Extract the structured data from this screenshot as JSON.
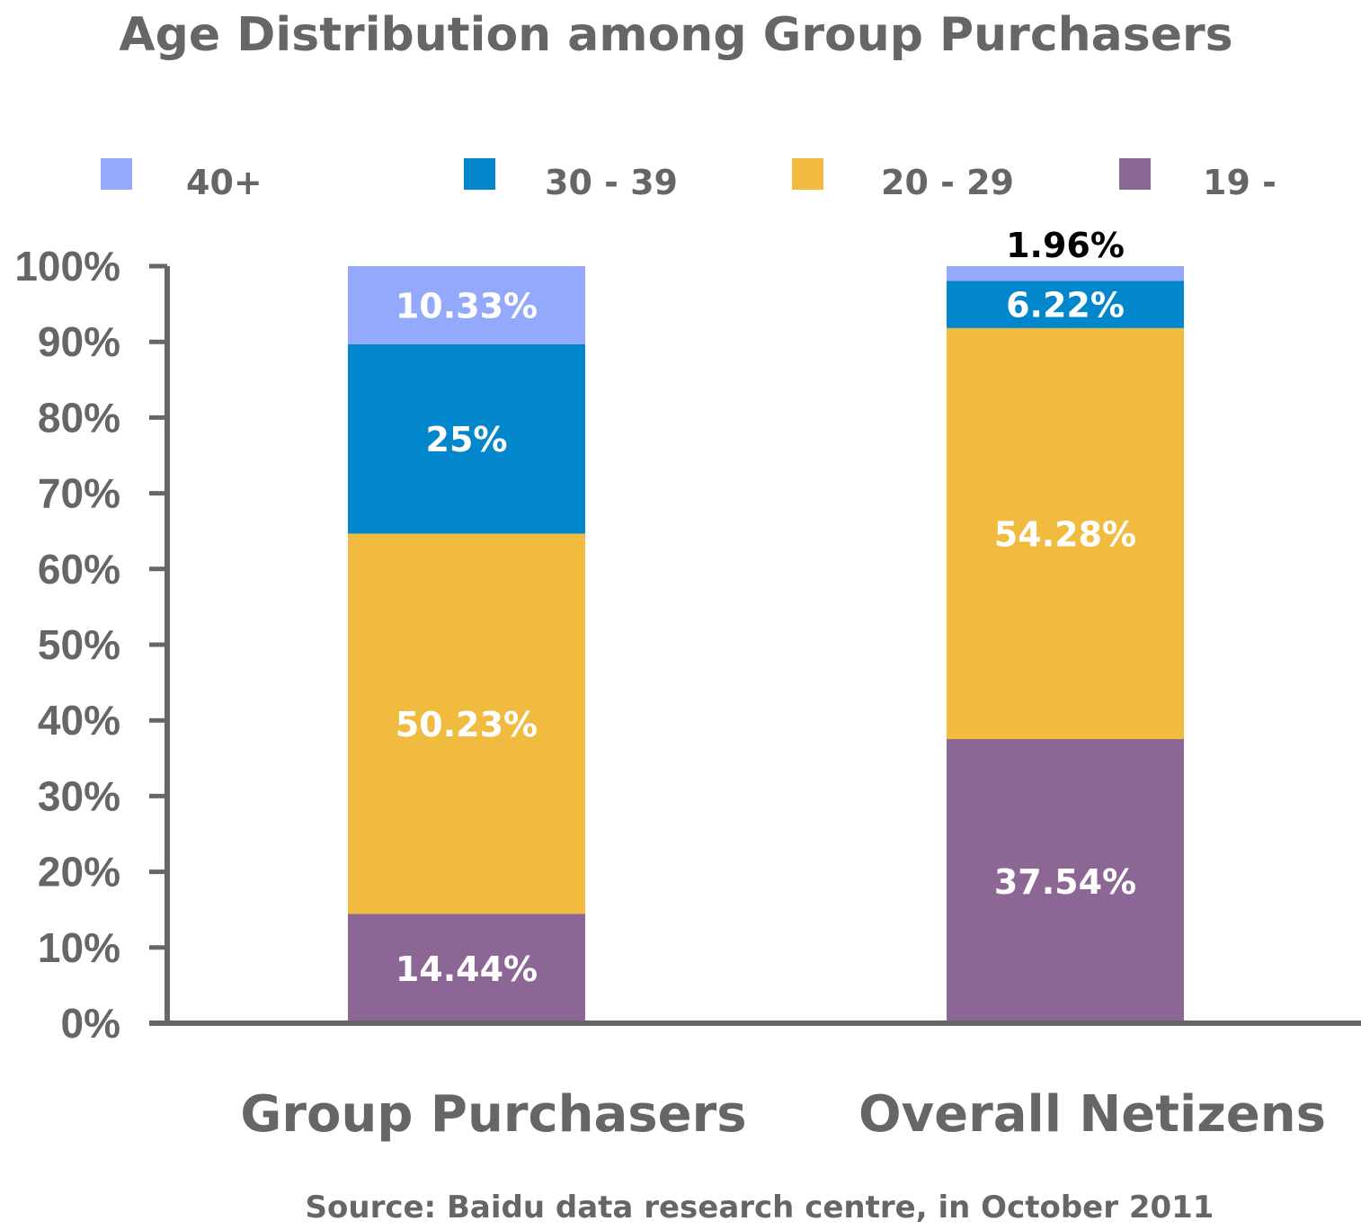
{
  "chart_data": {
    "type": "bar",
    "stacked": true,
    "title": "Age Distribution among Group Purchasers",
    "categories": [
      "Group Purchasers",
      "Overall Netizens"
    ],
    "series": [
      {
        "name": "19 -",
        "values": [
          14.44,
          37.54
        ],
        "labels": [
          "14.44%",
          "37.54%"
        ],
        "color": "#8c6795"
      },
      {
        "name": "20 - 29",
        "values": [
          50.23,
          54.28
        ],
        "labels": [
          "50.23%",
          "54.28%"
        ],
        "color": "#f0bb3e"
      },
      {
        "name": "30 - 39",
        "values": [
          25,
          6.22
        ],
        "labels": [
          "25%",
          "6.22%"
        ],
        "color": "#0287cc"
      },
      {
        "name": "40+",
        "values": [
          10.33,
          1.96
        ],
        "labels": [
          "10.33%",
          "1.96%"
        ],
        "color": "#94a9fb"
      }
    ],
    "legend_order": [
      "40+",
      "30 - 39",
      "20 - 29",
      "19 -"
    ],
    "legend_position": "top",
    "yticks": [
      "0%",
      "10%",
      "20%",
      "30%",
      "40%",
      "50%",
      "60%",
      "70%",
      "80%",
      "90%",
      "100%"
    ],
    "ylim": [
      0,
      100
    ],
    "grid": false,
    "source": "Source: Baidu data research centre, in October 2011"
  }
}
